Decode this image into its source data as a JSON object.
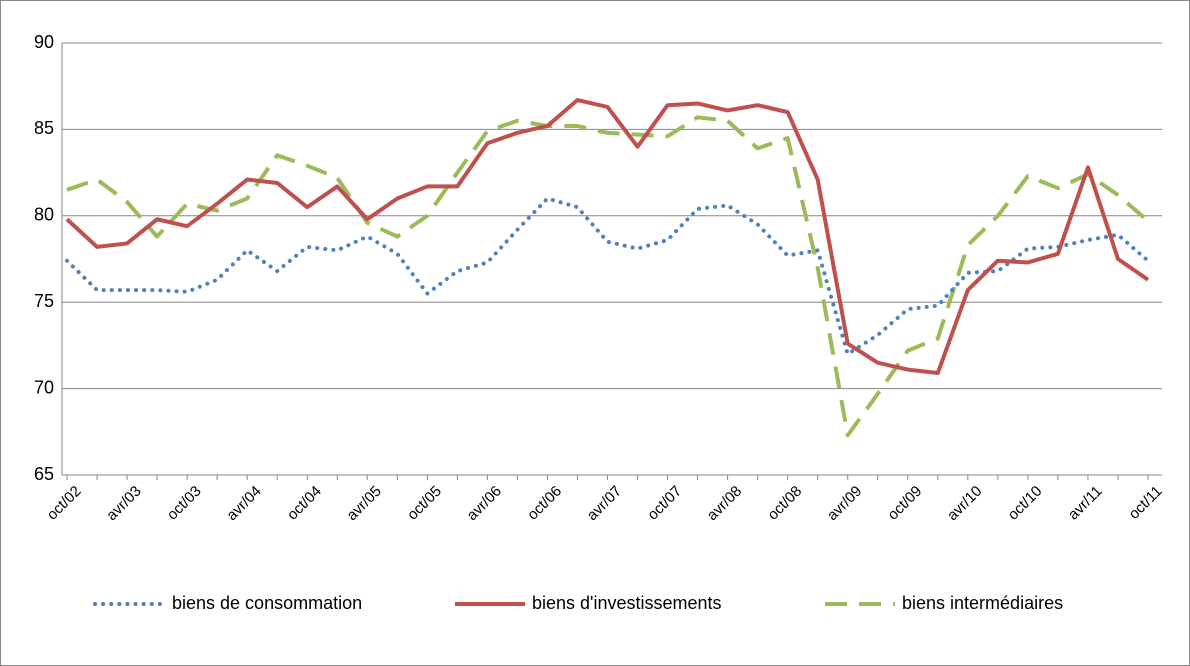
{
  "chart_data": {
    "type": "line",
    "categories": [
      "oct/02",
      null,
      "avr/03",
      null,
      "oct/03",
      null,
      "avr/04",
      null,
      "oct/04",
      null,
      "avr/05",
      null,
      "oct/05",
      null,
      "avr/06",
      null,
      "oct/06",
      null,
      "avr/07",
      null,
      "oct/07",
      null,
      "avr/08",
      null,
      "oct/08",
      null,
      "avr/09",
      null,
      "oct/09",
      null,
      "avr/10",
      null,
      "oct/10",
      null,
      "avr/11",
      null,
      "oct/11"
    ],
    "series": [
      {
        "name": "biens de consommation",
        "color": "#4f81bd",
        "style": "dotted",
        "values": [
          77.4,
          75.7,
          75.7,
          75.7,
          75.6,
          76.3,
          78.0,
          76.8,
          78.2,
          78.0,
          78.8,
          77.8,
          75.5,
          76.8,
          77.3,
          79.2,
          81.0,
          80.5,
          78.5,
          78.1,
          78.6,
          80.4,
          80.6,
          79.5,
          77.7,
          78.0,
          72.0,
          73.1,
          74.6,
          74.8,
          76.7,
          76.8,
          78.1,
          78.2,
          78.6,
          78.9,
          77.4
        ]
      },
      {
        "name": "biens d'investissements",
        "color": "#c0504d",
        "style": "solid",
        "values": [
          79.8,
          78.2,
          78.4,
          79.8,
          79.4,
          80.7,
          82.1,
          81.9,
          80.5,
          81.7,
          79.8,
          81.0,
          81.7,
          81.7,
          84.2,
          84.8,
          85.2,
          86.7,
          86.3,
          84.0,
          86.4,
          86.5,
          86.1,
          86.4,
          86.0,
          82.1,
          72.6,
          71.5,
          71.1,
          70.9,
          75.7,
          77.4,
          77.3,
          77.8,
          82.8,
          77.5,
          76.3
        ]
      },
      {
        "name": "biens intermédiaires",
        "color": "#9bbb59",
        "style": "dashed",
        "values": [
          81.5,
          82.1,
          80.8,
          78.8,
          80.7,
          80.3,
          81.0,
          83.5,
          82.9,
          82.2,
          79.6,
          78.8,
          80.0,
          82.5,
          84.9,
          85.5,
          85.2,
          85.2,
          84.8,
          84.7,
          84.6,
          85.7,
          85.5,
          83.9,
          84.5,
          77.0,
          67.3,
          69.7,
          72.2,
          72.9,
          78.3,
          80.0,
          82.3,
          81.6,
          82.4,
          81.2,
          79.7
        ]
      }
    ],
    "ylim": [
      65,
      90
    ],
    "yticks": [
      65,
      70,
      75,
      80,
      85,
      90
    ],
    "grid": true,
    "legend": "bottom"
  }
}
